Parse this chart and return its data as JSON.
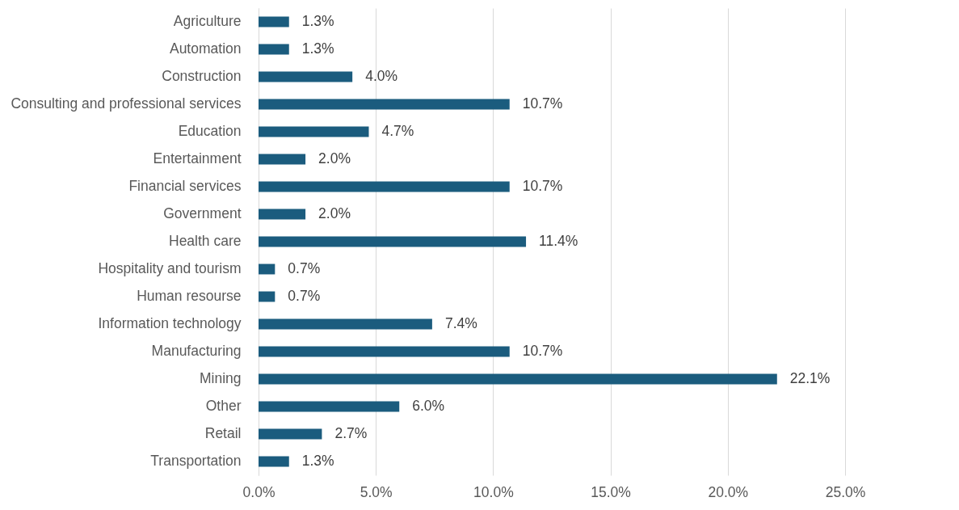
{
  "chart_data": {
    "type": "bar",
    "orientation": "horizontal",
    "categories": [
      "Agriculture",
      "Automation",
      "Construction",
      "Consulting and professional services",
      "Education",
      "Entertainment",
      "Financial services",
      "Government",
      "Health care",
      "Hospitality and tourism",
      "Human resourse",
      "Information technology",
      "Manufacturing",
      "Mining",
      "Other",
      "Retail",
      "Transportation"
    ],
    "values": [
      1.3,
      1.3,
      4.0,
      10.7,
      4.7,
      2.0,
      10.7,
      2.0,
      11.4,
      0.7,
      0.7,
      7.4,
      10.7,
      22.1,
      6.0,
      2.7,
      1.3
    ],
    "value_labels": [
      "1.3%",
      "1.3%",
      "4.0%",
      "10.7%",
      "4.7%",
      "2.0%",
      "10.7%",
      "2.0%",
      "11.4%",
      "0.7%",
      "0.7%",
      "7.4%",
      "10.7%",
      "22.1%",
      "6.0%",
      "2.7%",
      "1.3%"
    ],
    "color": "#1b5c7e",
    "xlim": [
      0,
      25
    ],
    "xticks": [
      {
        "value": 0,
        "label": "0.0%"
      },
      {
        "value": 5,
        "label": "5.0%"
      },
      {
        "value": 10,
        "label": "10.0%"
      },
      {
        "value": 15,
        "label": "15.0%"
      },
      {
        "value": 20,
        "label": "20.0%"
      },
      {
        "value": 25,
        "label": "25.0%"
      }
    ],
    "grid": "x"
  }
}
